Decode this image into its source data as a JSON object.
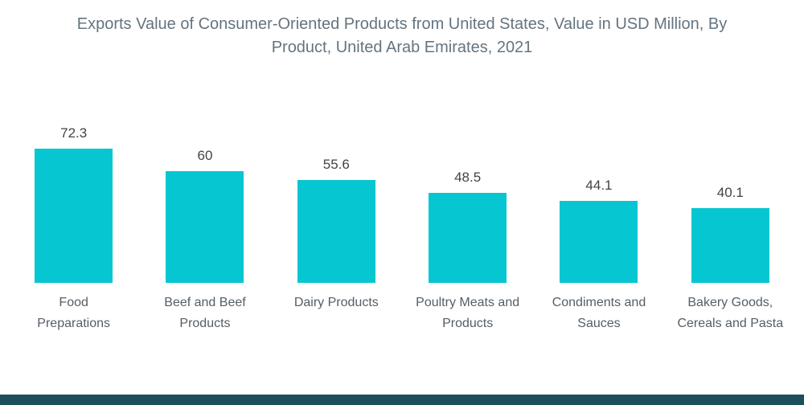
{
  "title": "Exports Value of Consumer-Oriented Products from United States, Value in USD Million, By Product, United Arab Emirates, 2021",
  "chart_data": {
    "type": "bar",
    "title": "Exports Value of Consumer-Oriented Products from United States, Value in USD Million, By Product, United Arab Emirates, 2021",
    "categories": [
      "Food Preparations",
      "Beef and Beef Products",
      "Dairy Products",
      "Poultry Meats and Products",
      "Condiments and Sauces",
      "Bakery Goods, Cereals and Pasta"
    ],
    "category_display": [
      "Food\nPreparations",
      "Beef and Beef\nProducts",
      "Dairy Products",
      "Poultry Meats and\nProducts",
      "Condiments and\nSauces",
      "Bakery Goods,\nCereals and Pasta"
    ],
    "values": [
      72.3,
      60,
      55.6,
      48.5,
      44.1,
      40.1
    ],
    "value_labels": [
      "72.3",
      "60",
      "55.6",
      "48.5",
      "44.1",
      "40.1"
    ],
    "xlabel": "",
    "ylabel": "",
    "ylim": [
      0,
      80
    ],
    "grid": false,
    "legend": "none",
    "bar_color": "#06c6d1"
  },
  "colors": {
    "bar": "#06c6d1",
    "title_text": "#64747f",
    "value_text": "#3f4448",
    "category_text": "#545e66",
    "footer_strip": "#1d4e5c",
    "background": "#ffffff"
  }
}
